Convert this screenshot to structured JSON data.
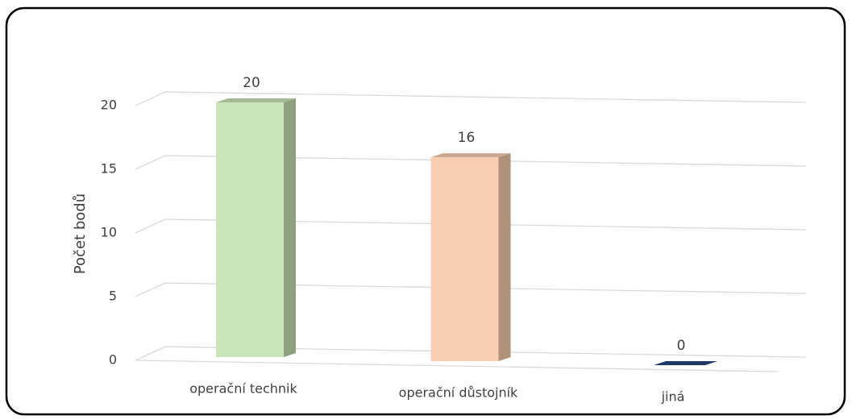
{
  "chart_data": {
    "type": "bar3d",
    "y_label": "Počet bodů",
    "categories": [
      "operační technik",
      "operační důstojník",
      "jiná"
    ],
    "values": [
      20,
      16,
      0
    ],
    "colors": [
      "#c9e4b7",
      "#f9cdb0",
      "#1f3864"
    ],
    "ylim": [
      0,
      20
    ],
    "yticks": [
      0,
      5,
      10,
      15,
      20
    ],
    "grid": true
  }
}
